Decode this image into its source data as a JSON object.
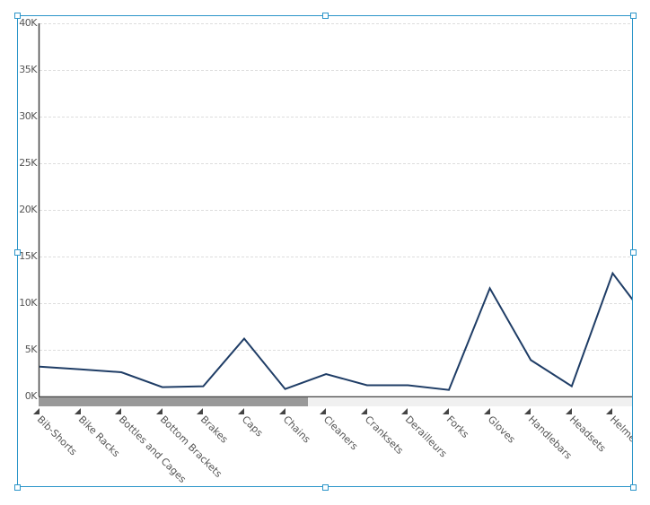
{
  "chart_data": {
    "type": "line",
    "title": "",
    "xlabel": "",
    "ylabel": "",
    "ylim": [
      0,
      40000
    ],
    "yticks": [
      "0K",
      "5K",
      "10K",
      "15K",
      "20K",
      "25K",
      "30K",
      "35K",
      "40K"
    ],
    "grid": true,
    "legend": null,
    "categories": [
      "Bib-Shorts",
      "Bike Racks",
      "Bottles and Cages",
      "Bottom Brackets",
      "Brakes",
      "Caps",
      "Chains",
      "Cleaners",
      "Cranksets",
      "Derailleurs",
      "Forks",
      "Gloves",
      "Handlebars",
      "Headsets",
      "Helmets"
    ],
    "series": [
      {
        "name": "Value",
        "color": "#1f3d66",
        "values": [
          3200,
          2900,
          2600,
          1000,
          1100,
          6200,
          800,
          2400,
          1200,
          1200,
          700,
          11600,
          3900,
          1100,
          13200
        ]
      }
    ],
    "next_point_partial": 7400
  },
  "axis": {
    "y_labels": [
      "40K",
      "35K",
      "30K",
      "25K",
      "20K",
      "15K",
      "10K",
      "5K",
      "0K"
    ]
  },
  "scrollbar": {
    "thumb_color": "#999999",
    "track_color": "#f0f0f0"
  },
  "colors": {
    "selection_border": "#2b95c9",
    "line": "#1f3d66",
    "grid": "#dddddd",
    "axis": "#444444"
  }
}
